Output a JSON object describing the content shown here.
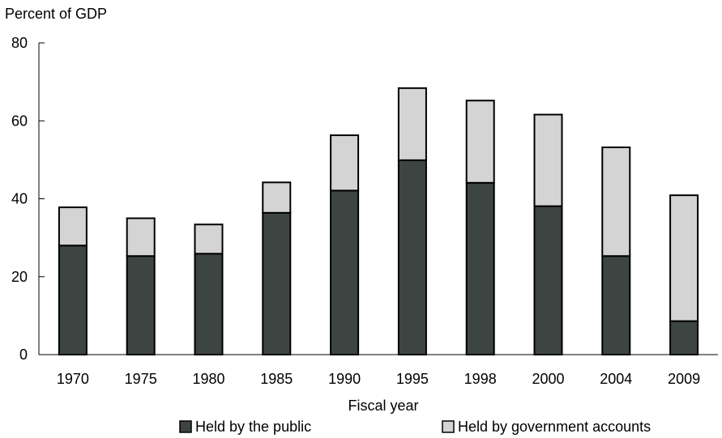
{
  "chart_data": {
    "type": "bar",
    "stacked": true,
    "title": "",
    "ylabel": "Percent of GDP",
    "xlabel": "Fiscal year",
    "ylim": [
      0,
      80
    ],
    "yticks": [
      0,
      20,
      40,
      60,
      80
    ],
    "categories": [
      "1970",
      "1975",
      "1980",
      "1985",
      "1990",
      "1995",
      "1998",
      "2000",
      "2004",
      "2009"
    ],
    "series": [
      {
        "name": "Held by the public",
        "color": "#3d4543",
        "values": [
          28,
          25.3,
          25.9,
          36.4,
          42.1,
          49.9,
          44.1,
          38.1,
          25.3,
          8.6
        ]
      },
      {
        "name": "Held by government accounts",
        "color": "#d4d4d4",
        "values": [
          9.8,
          9.7,
          7.5,
          7.8,
          14.2,
          18.5,
          21.1,
          23.5,
          27.9,
          32.3
        ]
      }
    ],
    "legend_position": "bottom",
    "grid": false
  }
}
